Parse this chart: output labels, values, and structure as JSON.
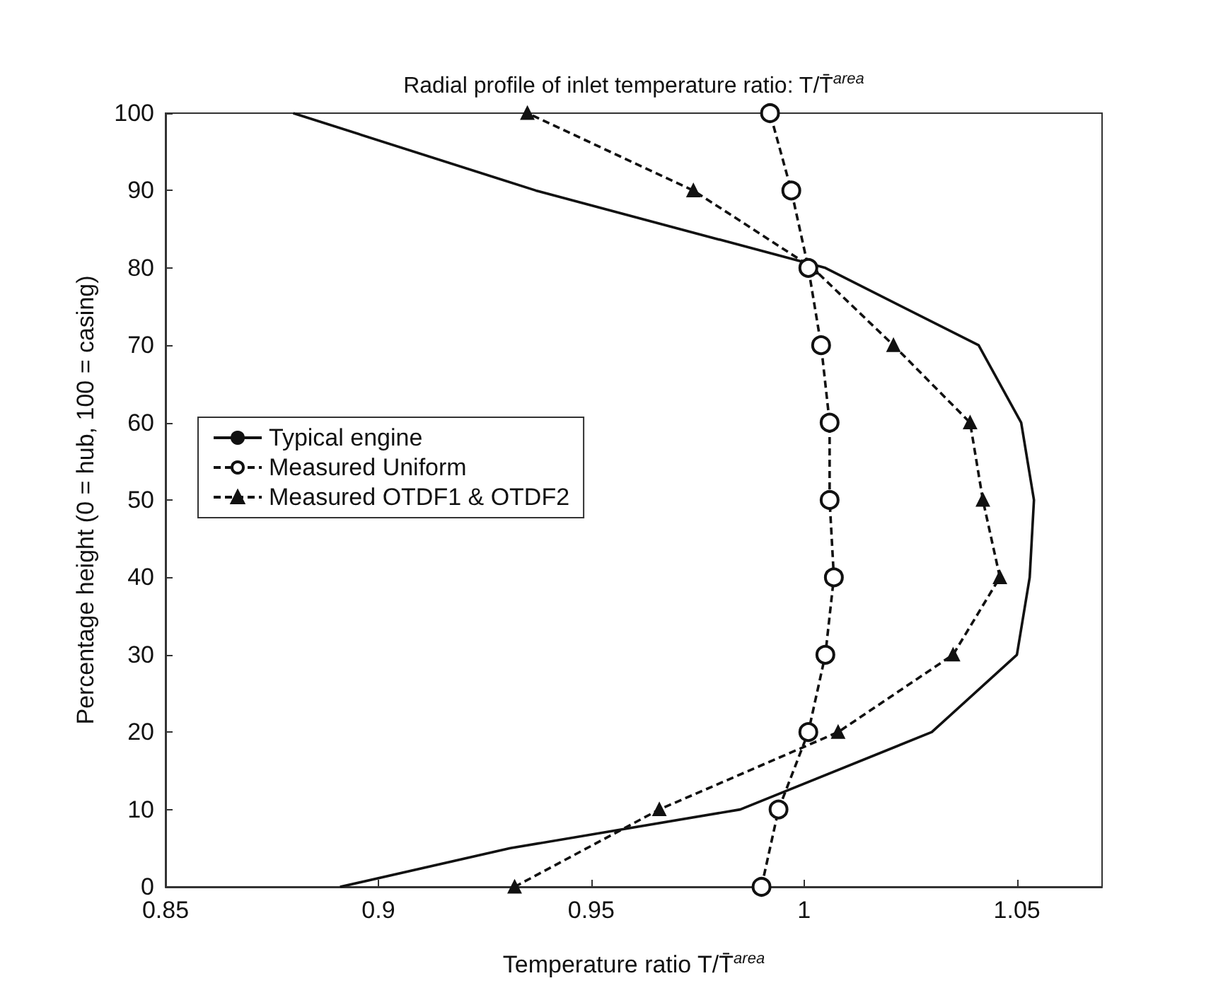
{
  "chart_data": {
    "type": "line",
    "title": "Radial profile of inlet temperature ratio: T/T̄$^{area}$",
    "xlabel": "Temperature ratio T/T̄$^{area}$",
    "ylabel": "Percentage height (0 = hub, 100 = casing)",
    "xlim": [
      0.85,
      1.07
    ],
    "xticks": [
      0.85,
      0.9,
      0.95,
      1,
      1.05
    ],
    "ylim": [
      0,
      100
    ],
    "yticks": [
      0,
      10,
      20,
      30,
      40,
      50,
      60,
      70,
      80,
      90,
      100
    ],
    "legend": "left",
    "series": [
      {
        "name": "Typical engine",
        "color": "#111111",
        "marker": "none",
        "line_style": "solid",
        "x": [
          0.891,
          0.931,
          0.985,
          1.03,
          1.05,
          1.053,
          1.054,
          1.051,
          1.041,
          1.005,
          0.937,
          0.88
        ],
        "values": [
          0,
          5,
          10,
          20,
          30,
          40,
          50,
          60,
          70,
          80,
          90,
          100
        ]
      },
      {
        "name": "Measured Uniform",
        "color": "#111111",
        "marker": "circle",
        "line_style": "dashed",
        "x": [
          0.99,
          0.994,
          1.001,
          1.005,
          1.007,
          1.006,
          1.006,
          1.004,
          1.001,
          0.997,
          0.992
        ],
        "values": [
          0,
          10,
          20,
          30,
          40,
          50,
          60,
          70,
          80,
          90,
          100
        ]
      },
      {
        "name": "Measured OTDF1 & OTDF2",
        "color": "#111111",
        "marker": "triangle",
        "line_style": "dashed",
        "x": [
          0.932,
          0.966,
          1.008,
          1.035,
          1.046,
          1.042,
          1.039,
          1.021,
          1.002,
          0.974,
          0.935
        ],
        "values": [
          0,
          10,
          20,
          30,
          40,
          50,
          60,
          70,
          80,
          90,
          100
        ]
      }
    ]
  }
}
